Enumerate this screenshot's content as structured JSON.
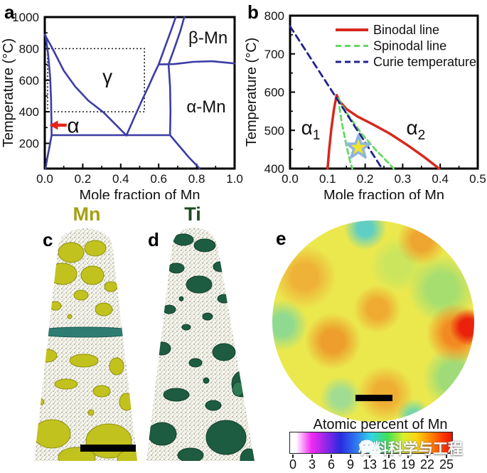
{
  "panels": {
    "a": "a",
    "b": "b",
    "c": "c",
    "d": "d",
    "e": "e"
  },
  "colors": {
    "phase_line": "#3c3ca6",
    "frame": "#000000",
    "arrow_red": "#e8231c",
    "binodal_red": "#d6281e",
    "spinodal_green": "#63d963",
    "curie_navy": "#22228f",
    "star_fill": "#f1e32f",
    "star_stroke": "#8fb6da",
    "mn_olive": "#a5a012",
    "ti_green": "#1d4a23"
  },
  "chart_data": [
    {
      "id": "a",
      "type": "line",
      "xlabel": "Mole fraction of Mn",
      "ylabel": "Temperature (°C)",
      "xlim": [
        0,
        1
      ],
      "ylim": [
        40,
        1000
      ],
      "xticks": [
        0,
        0.2,
        0.4,
        0.6,
        0.8,
        1.0
      ],
      "yticks": [
        200,
        400,
        600,
        800,
        1000
      ],
      "xtick_minor": 0.1,
      "ytick_minor": 100,
      "x_decimals": 1,
      "line_color": "#3c3ca6",
      "series": [
        {
          "name": "gamma-left-boundary",
          "points": [
            [
              0,
              888
            ],
            [
              0.041,
              800
            ],
            [
              0.1,
              660
            ],
            [
              0.16,
              560
            ],
            [
              0.23,
              470
            ],
            [
              0.31,
              395
            ],
            [
              0.43,
              250
            ]
          ]
        },
        {
          "name": "alpha-beta-boundary",
          "points": [
            [
              0.004,
              885
            ],
            [
              0.018,
              760
            ],
            [
              0.028,
              620
            ],
            [
              0.033,
              480
            ],
            [
              0.035,
              350
            ],
            [
              0.036,
              252
            ]
          ]
        },
        {
          "name": "alpha-solvus-low",
          "points": [
            [
              0.036,
              252
            ],
            [
              0.025,
              180
            ],
            [
              0.012,
              100
            ],
            [
              0.004,
              42
            ]
          ]
        },
        {
          "name": "eutectoid-line",
          "points": [
            [
              0.036,
              252
            ],
            [
              0.66,
              252
            ]
          ]
        },
        {
          "name": "gamma-right-boundary",
          "points": [
            [
              0.43,
              250
            ],
            [
              0.47,
              360
            ],
            [
              0.515,
              480
            ],
            [
              0.55,
              570
            ],
            [
              0.578,
              645
            ],
            [
              0.6,
              700
            ]
          ]
        },
        {
          "name": "beta-mn-left-upper",
          "points": [
            [
              0.6,
              700
            ],
            [
              0.63,
              800
            ],
            [
              0.665,
              915
            ],
            [
              0.69,
              1000
            ]
          ]
        },
        {
          "name": "beta-mn-right-upper",
          "points": [
            [
              0.652,
              700
            ],
            [
              0.685,
              810
            ],
            [
              0.715,
              915
            ],
            [
              0.735,
              1000
            ]
          ]
        },
        {
          "name": "alpha-mn-left-vertical",
          "points": [
            [
              0.652,
              700
            ],
            [
              0.66,
              560
            ],
            [
              0.662,
              400
            ],
            [
              0.66,
              252
            ]
          ]
        },
        {
          "name": "beta-alpha-mn-horizontal",
          "points": [
            [
              0.6,
              700
            ],
            [
              0.68,
              702
            ],
            [
              0.78,
              716
            ],
            [
              0.88,
              720
            ],
            [
              1.0,
              706
            ]
          ]
        },
        {
          "name": "low-temp-right-boundary",
          "points": [
            [
              0.66,
              252
            ],
            [
              0.7,
              195
            ],
            [
              0.76,
              110
            ],
            [
              0.815,
              42
            ]
          ]
        }
      ],
      "annotations": [
        {
          "text": "γ",
          "x": 0.33,
          "y": 625,
          "size": 28
        },
        {
          "text": "β-Mn",
          "x": 0.86,
          "y": 870,
          "size": 24
        },
        {
          "text": "α-Mn",
          "x": 0.85,
          "y": 435,
          "size": 24
        },
        {
          "text": "α",
          "x": 0.15,
          "y": 315,
          "size": 30
        }
      ],
      "dotted_rect": {
        "x0": 0.015,
        "y0": 400,
        "x1": 0.525,
        "y1": 800
      },
      "arrow": {
        "y": 315,
        "x_tail": 0.115,
        "x_head": 0.024,
        "color": "#e8231c"
      }
    },
    {
      "id": "b",
      "type": "line",
      "xlabel": "Mole fraction of Mn",
      "ylabel": "Temperature (°C)",
      "xlim": [
        0,
        0.5
      ],
      "ylim": [
        400,
        800
      ],
      "xticks": [
        0,
        0.1,
        0.2,
        0.3,
        0.4,
        0.5
      ],
      "yticks": [
        400,
        500,
        600,
        700,
        800
      ],
      "xtick_minor": 0.05,
      "ytick_minor": 50,
      "x_decimals": 1,
      "line_color": "#3c3ca6",
      "series": [
        {
          "name": "binodal-line",
          "color": "#d6281e",
          "width": 3.5,
          "points": [
            [
              0.1,
              400
            ],
            [
              0.104,
              448
            ],
            [
              0.11,
              505
            ],
            [
              0.117,
              556
            ],
            [
              0.124,
              592
            ],
            [
              0.132,
              576
            ],
            [
              0.15,
              556
            ],
            [
              0.18,
              536
            ],
            [
              0.22,
              516
            ],
            [
              0.265,
              492
            ],
            [
              0.31,
              463
            ],
            [
              0.355,
              432
            ],
            [
              0.397,
              400
            ]
          ]
        },
        {
          "name": "spinodal-left",
          "color": "#63d963",
          "width": 2.8,
          "dash": "7,5",
          "points": [
            [
              0.128,
              583
            ],
            [
              0.137,
              525
            ],
            [
              0.149,
              465
            ],
            [
              0.16,
              418
            ],
            [
              0.166,
              400
            ]
          ]
        },
        {
          "name": "spinodal-right",
          "color": "#63d963",
          "width": 2.8,
          "dash": "7,5",
          "points": [
            [
              0.128,
              583
            ],
            [
              0.155,
              540
            ],
            [
              0.19,
              492
            ],
            [
              0.23,
              447
            ],
            [
              0.262,
              415
            ],
            [
              0.276,
              400
            ]
          ]
        },
        {
          "name": "curie-temperature",
          "color": "#22228f",
          "width": 2.8,
          "dash": "9,6",
          "points": [
            [
              0,
              772
            ],
            [
              0.245,
              400
            ]
          ]
        }
      ],
      "legend": [
        {
          "label": "Binodal line",
          "color": "#d6281e",
          "dash": false
        },
        {
          "label": "Spinodal line",
          "color": "#63d963",
          "dash": true
        },
        {
          "label": "Curie temperature",
          "color": "#22228f",
          "dash": true
        }
      ],
      "annotations": [
        {
          "text": "α",
          "sub": "1",
          "x": 0.055,
          "y": 508,
          "size": 28
        },
        {
          "text": "α",
          "sub": "2",
          "x": 0.335,
          "y": 508,
          "size": 28
        }
      ],
      "star": {
        "x": 0.182,
        "y": 455,
        "fill": "#f1e32f",
        "stroke": "#8fb6da"
      }
    }
  ],
  "panel_c": {
    "title": "Mn",
    "title_color": "#a5a012"
  },
  "panel_d": {
    "title": "Ti",
    "title_color": "#1d4a23"
  },
  "panel_e": {
    "title": "Atomic percent of Mn",
    "colorbar_ticks": [
      "0",
      "3",
      "6",
      "9",
      "13",
      "16",
      "19",
      "22",
      "25"
    ],
    "colorbar_gradient": [
      [
        "#ffffff",
        "0%"
      ],
      [
        "#ffffff",
        "3.5%"
      ],
      [
        "#f32bf3",
        "13%"
      ],
      [
        "#9326e6",
        "22%"
      ],
      [
        "#2a2ae0",
        "31%"
      ],
      [
        "#2f7bf0",
        "41%"
      ],
      [
        "#33d4e8",
        "50%"
      ],
      [
        "#3fdf57",
        "60%"
      ],
      [
        "#d9ee2e",
        "70%"
      ],
      [
        "#ffd313",
        "78%"
      ],
      [
        "#ff8c00",
        "86%"
      ],
      [
        "#ff3c00",
        "94%"
      ],
      [
        "#e81500",
        "100%"
      ]
    ]
  },
  "watermark": {
    "text": "材料科学与工程",
    "icon": "wechat-icon"
  }
}
